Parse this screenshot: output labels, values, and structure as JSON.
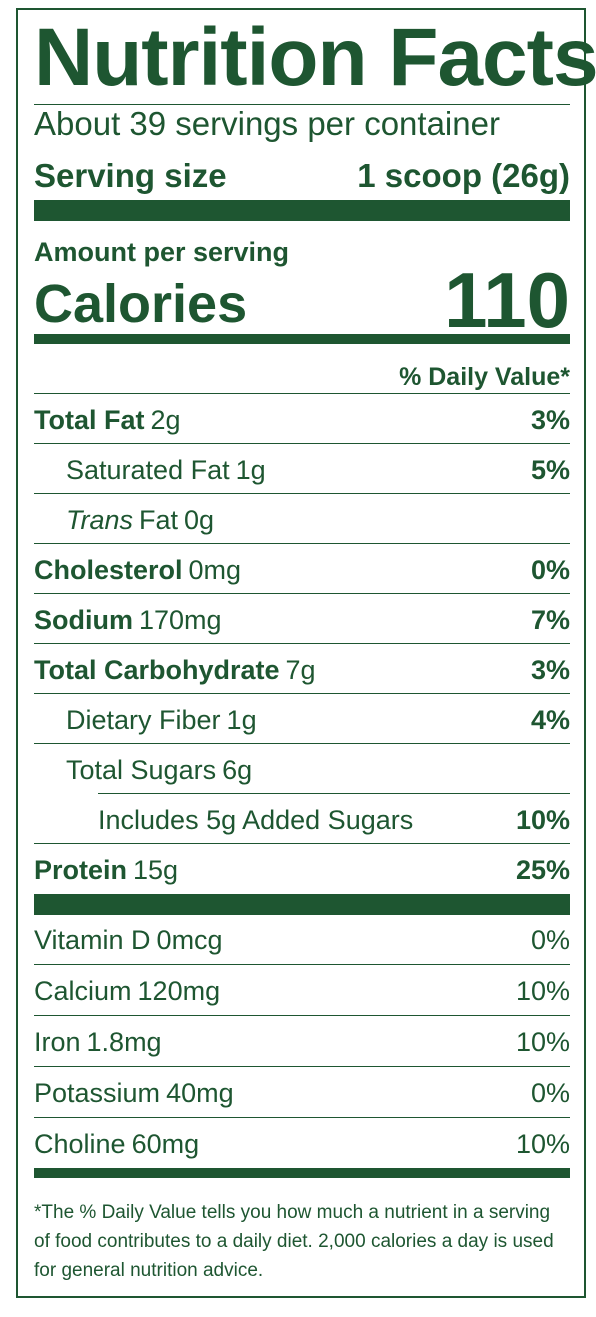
{
  "title": "Nutrition Facts",
  "servings_per_container": "About 39 servings per container",
  "serving_size": {
    "label": "Serving size",
    "value": "1 scoop (26g)"
  },
  "amount_per_serving": "Amount per serving",
  "calories": {
    "label": "Calories",
    "value": "110"
  },
  "daily_value_header": "% Daily Value*",
  "nutrients": [
    {
      "name": "Total Fat",
      "amount": "2g",
      "dv": "3%"
    },
    {
      "name": "Saturated Fat",
      "amount": "1g",
      "dv": "5%"
    },
    {
      "name_italic": "Trans",
      "name": "Fat",
      "amount": "0g",
      "dv": ""
    },
    {
      "name": "Cholesterol",
      "amount": "0mg",
      "dv": "0%"
    },
    {
      "name": "Sodium",
      "amount": "170mg",
      "dv": "7%"
    },
    {
      "name": "Total Carbohydrate",
      "amount": "7g",
      "dv": "3%"
    },
    {
      "name": "Dietary Fiber",
      "amount": "1g",
      "dv": "4%"
    },
    {
      "name": "Total Sugars",
      "amount": "6g",
      "dv": ""
    },
    {
      "name": "Includes 5g Added Sugars",
      "dv": "10%"
    },
    {
      "name": "Protein",
      "amount": "15g",
      "dv": "25%"
    }
  ],
  "vitamins": [
    {
      "name": "Vitamin D",
      "amount": "0mcg",
      "dv": "0%"
    },
    {
      "name": "Calcium",
      "amount": "120mg",
      "dv": "10%"
    },
    {
      "name": "Iron",
      "amount": "1.8mg",
      "dv": "10%"
    },
    {
      "name": "Potassium",
      "amount": "40mg",
      "dv": "0%"
    },
    {
      "name": "Choline",
      "amount": "60mg",
      "dv": "10%"
    }
  ],
  "footnote": "*The % Daily Value tells you how much a nutrient in a serving of food contributes to a daily diet. 2,000 calories a day is used for general nutrition advice.",
  "colors": {
    "label_green": "#1e5631",
    "background": "#ffffff"
  }
}
